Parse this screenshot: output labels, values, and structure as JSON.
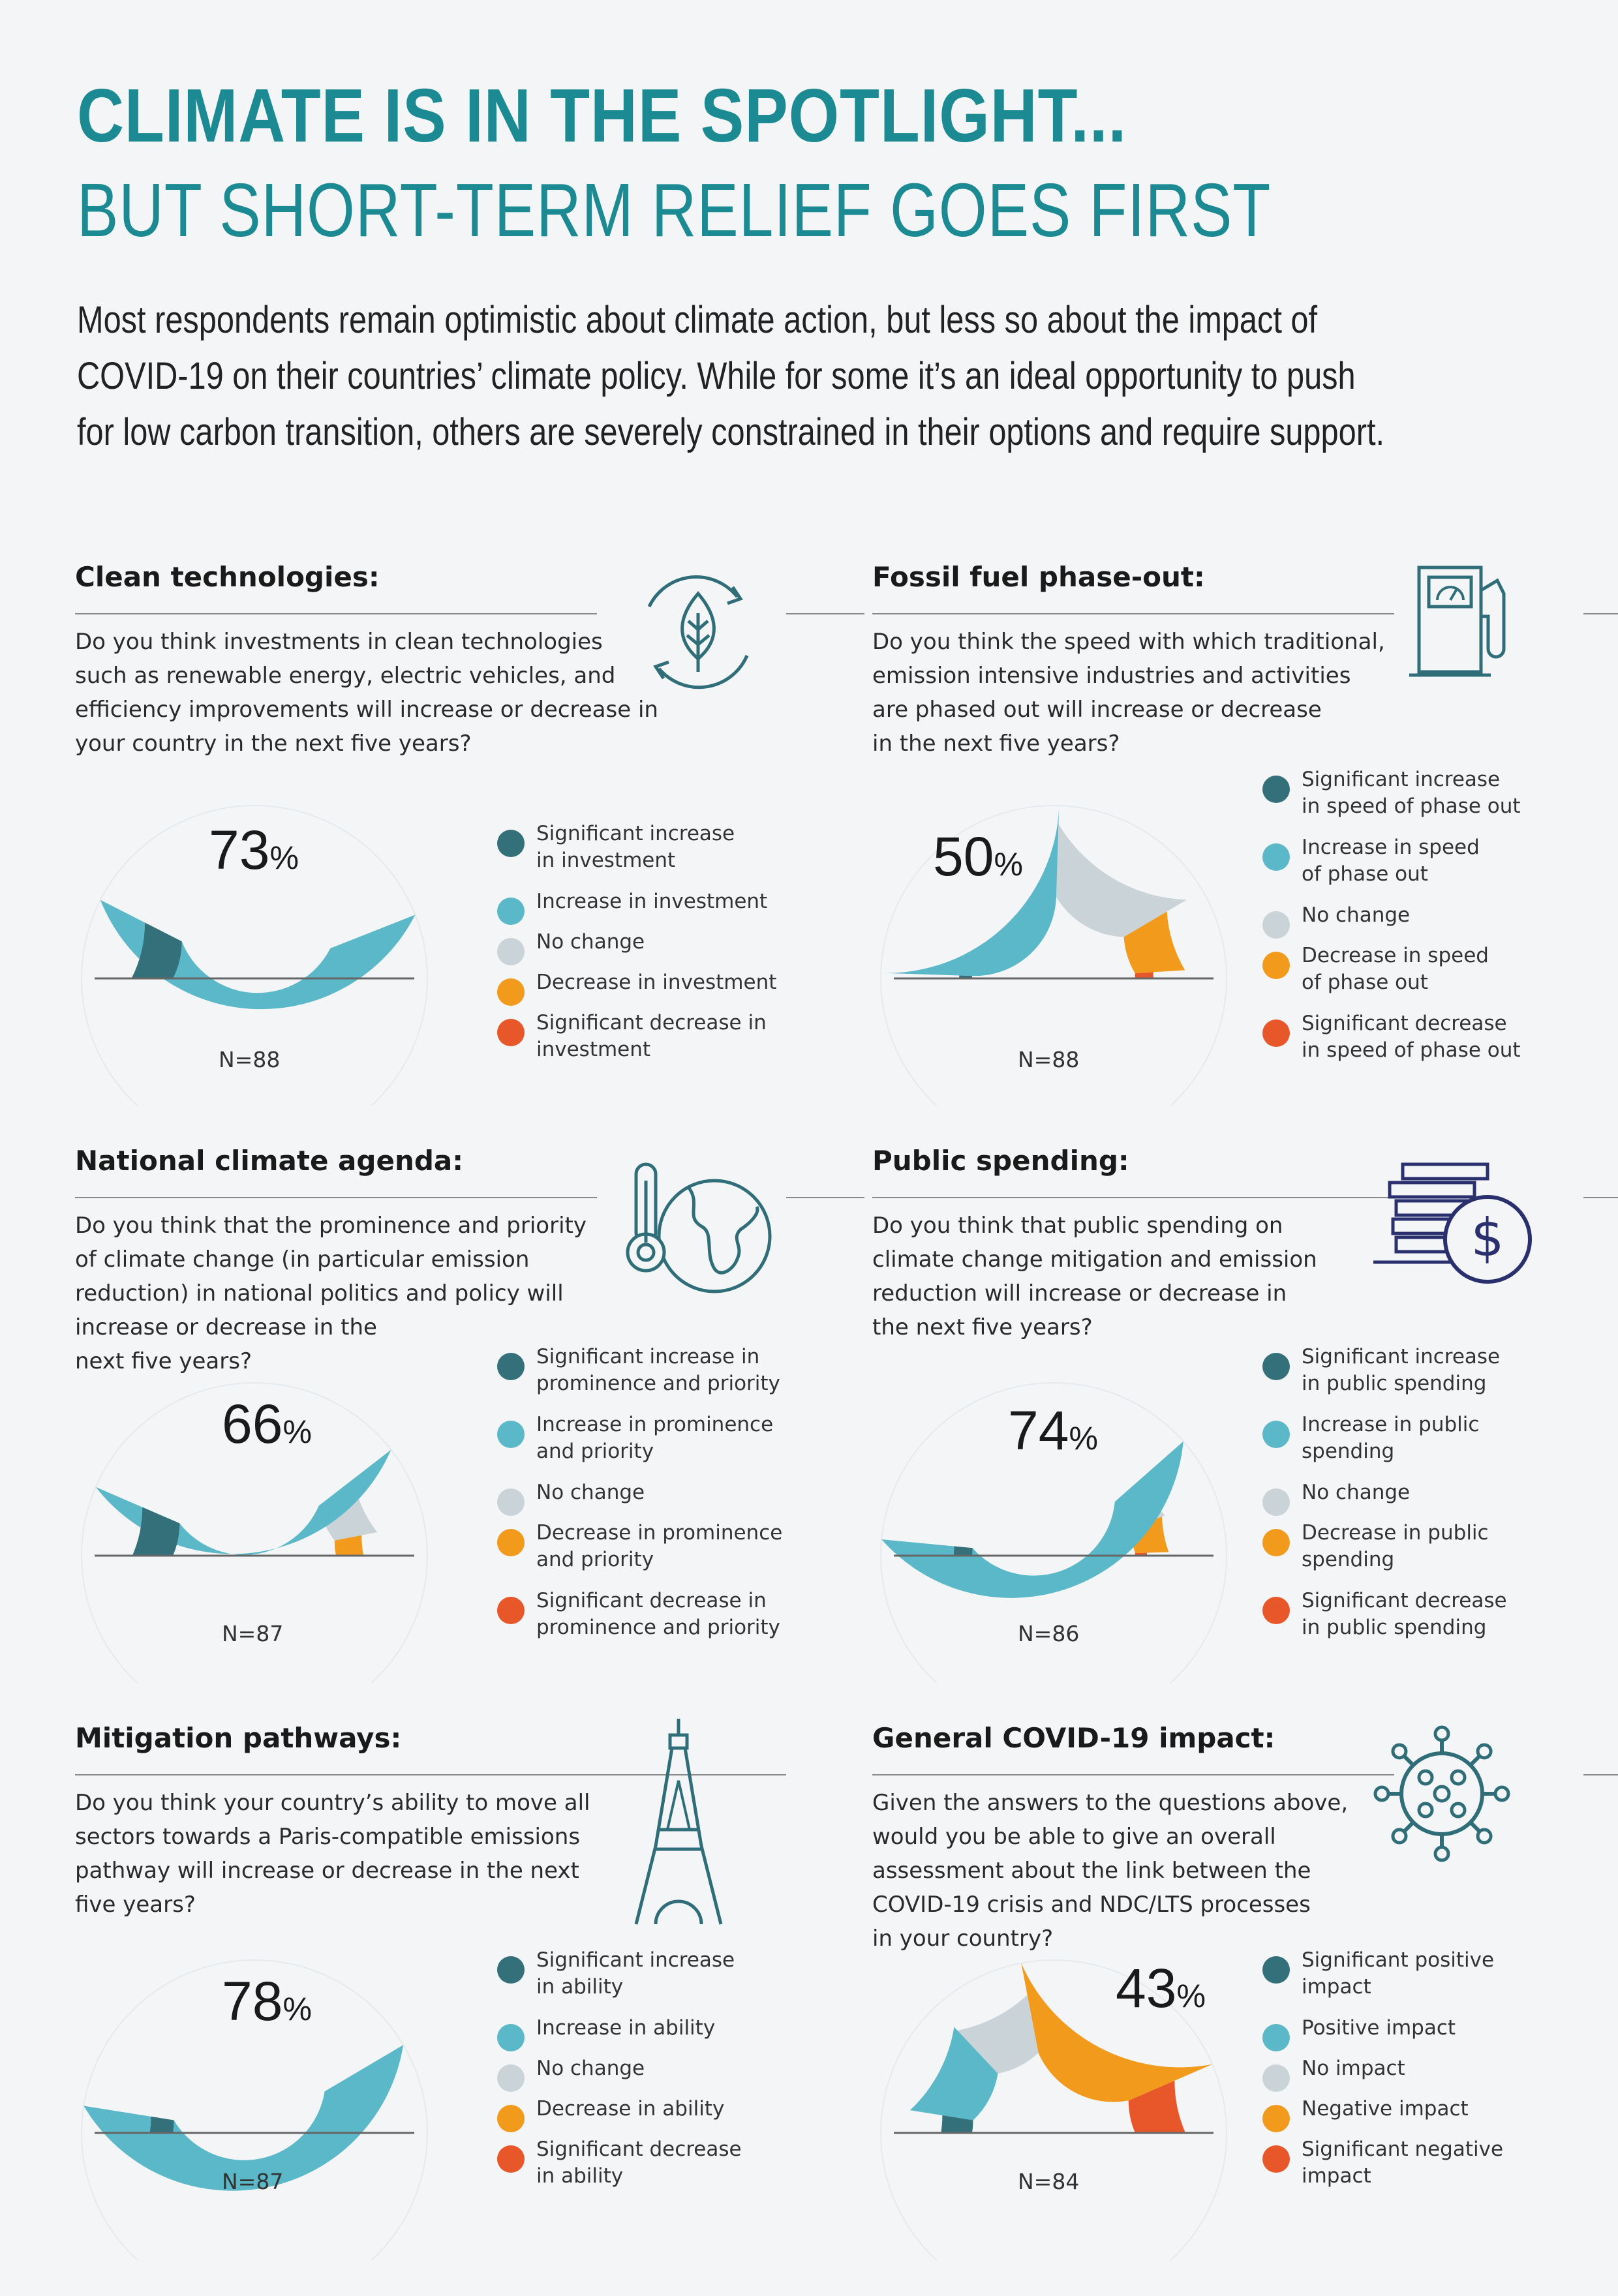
{
  "headline": {
    "line1": "CLIMATE IS IN THE SPOTLIGHT...",
    "line2": "BUT SHORT-TERM RELIEF GOES FIRST"
  },
  "intro": [
    "Most respondents remain optimistic about climate action, but less so about the impact of",
    "COVID-19 on their countries’ climate policy. While for some it’s an ideal opportunity to push",
    "for low carbon transition, others are severely constrained in their options and require support."
  ],
  "colors": {
    "significant_increase": "#34707a",
    "increase": "#5ab8c8",
    "no_change": "#cad3d8",
    "decrease": "#f29a1c",
    "significant_decrease": "#e8572a",
    "accent": "#1c8a93",
    "icon": "#2f6e78",
    "icon_navy": "#2a2f6e"
  },
  "chart_data": [
    {
      "type": "pie",
      "title": "Clean technologies:",
      "question": [
        "Do you think investments in clean technologies",
        "such as renewable energy, electric vehicles, and",
        "efficiency improvements will increase or decrease in",
        "your country in the next five years?"
      ],
      "highlight": "73",
      "highlight_symbol": "%",
      "n_label": "N=88",
      "icon": "leaf-cycle-icon",
      "categories": [
        "Significant increase in investment",
        "Increase in investment",
        "No change",
        "Decrease in investment",
        "Significant decrease in investment"
      ],
      "legend": [
        [
          "Significant increase",
          "in investment"
        ],
        [
          "Increase in investment"
        ],
        [
          "No change"
        ],
        [
          "Decrease in investment"
        ],
        [
          "Significant decrease in",
          "investment"
        ]
      ],
      "values": [
        15,
        73,
        5,
        6,
        1
      ]
    },
    {
      "type": "pie",
      "title": "Fossil fuel phase-out:",
      "question": [
        "Do you think the speed with which traditional,",
        "emission intensive industries and activities",
        "are phased out will increase or decrease",
        "in the next five years?"
      ],
      "highlight": "50",
      "highlight_symbol": "%",
      "n_label": "N=88",
      "icon": "fuel-pump-icon",
      "categories": [
        "Significant increase in speed of phase out",
        "Increase in speed of phase out",
        "No change",
        "Decrease in speed of phase out",
        "Significant decrease in speed of phase out"
      ],
      "legend": [
        [
          "Significant increase",
          "in speed of phase out"
        ],
        [
          "Increase in speed",
          "of phase out"
        ],
        [
          "No change"
        ],
        [
          "Decrease in speed",
          "of phase out"
        ],
        [
          "Significant decrease",
          "in speed of phase out"
        ]
      ],
      "values": [
        1,
        50,
        32,
        15,
        2
      ]
    },
    {
      "type": "pie",
      "title": "National climate agenda:",
      "question": [
        "Do you think that the prominence and priority",
        "of climate change (in particular emission",
        "reduction) in national politics and policy will",
        "increase or decrease in the",
        "next five years?"
      ],
      "highlight": "66",
      "highlight_symbol": "%",
      "n_label": "N=87",
      "icon": "thermometer-globe-icon",
      "categories": [
        "Significant increase in prominence and priority",
        "Increase in prominence and priority",
        "No change",
        "Decrease in prominence and priority",
        "Significant decrease in prominence and priority"
      ],
      "legend": [
        [
          "Significant increase in",
          "prominence and priority"
        ],
        [
          "Increase in prominence",
          "and priority"
        ],
        [
          "No change"
        ],
        [
          "Decrease in prominence",
          "and priority"
        ],
        [
          "Significant decrease in",
          "prominence and priority"
        ]
      ],
      "values": [
        13,
        66,
        15,
        6,
        0
      ]
    },
    {
      "type": "pie",
      "title": "Public spending:",
      "question": [
        "Do you think that public spending on",
        "climate change mitigation and emission",
        "reduction will increase or decrease in",
        "the next five years?"
      ],
      "highlight": "74",
      "highlight_symbol": "%",
      "n_label": "N=86",
      "icon": "coins-dollar-icon",
      "categories": [
        "Significant increase in public spending",
        "Increase in public spending",
        "No change",
        "Decrease in public spending",
        "Significant decrease in public spending"
      ],
      "legend": [
        [
          "Significant increase",
          "in public spending"
        ],
        [
          "Increase in public",
          "spending"
        ],
        [
          "No change"
        ],
        [
          "Decrease in public",
          "spending"
        ],
        [
          "Significant decrease",
          "in public spending"
        ]
      ],
      "values": [
        3,
        74,
        12,
        10,
        1
      ]
    },
    {
      "type": "pie",
      "title": "Mitigation pathways:",
      "question": [
        "Do you think your country’s ability to move all",
        "sectors towards a Paris-compatible emissions",
        "pathway will increase or decrease in the next",
        "five years?"
      ],
      "highlight": "78",
      "highlight_symbol": "%",
      "n_label": "N=87",
      "icon": "eiffel-tower-icon",
      "categories": [
        "Significant increase in ability",
        "Increase in ability",
        "No change",
        "Decrease in ability",
        "Significant decrease in ability"
      ],
      "legend": [
        [
          "Significant increase",
          "in ability"
        ],
        [
          "Increase in ability"
        ],
        [
          "No change"
        ],
        [
          "Decrease in ability"
        ],
        [
          "Significant decrease",
          "in ability"
        ]
      ],
      "values": [
        5,
        78,
        11,
        6,
        0
      ]
    },
    {
      "type": "pie",
      "title": "General COVID-19 impact:",
      "question": [
        "Given the answers to the questions above,",
        "would you be able to give an overall",
        "assessment about the link between the",
        "COVID-19 crisis and NDC/LTS processes",
        "in your country?"
      ],
      "highlight": "43",
      "highlight_symbol": "%",
      "n_label": "N=84",
      "icon": "virus-icon",
      "categories": [
        "Significant positive impact",
        "Positive impact",
        "No impact",
        "Negative impact",
        "Significant negative impact"
      ],
      "legend": [
        [
          "Significant positive",
          "impact"
        ],
        [
          "Positive impact"
        ],
        [
          "No impact"
        ],
        [
          "Negative impact"
        ],
        [
          "Significant negative",
          "impact"
        ]
      ],
      "values": [
        5,
        21,
        18,
        43,
        13
      ]
    }
  ]
}
